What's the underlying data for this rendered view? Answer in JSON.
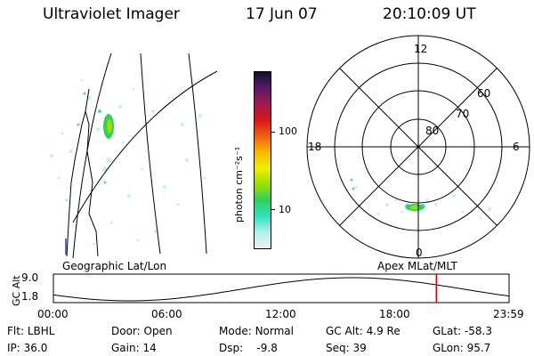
{
  "header": {
    "title": "Ultraviolet Imager",
    "date": "17 Jun 07",
    "time": "20:10:09 UT"
  },
  "geo_panel": {
    "label": "Geographic Lat/Lon"
  },
  "colorbar": {
    "unit_label": "photon cm⁻²s⁻¹",
    "ticks": [
      "100",
      "10"
    ],
    "colors": [
      "#101030",
      "#5a1a6a",
      "#a01a50",
      "#d81818",
      "#f06010",
      "#f8b800",
      "#f0f000",
      "#98e000",
      "#30d060",
      "#30e0c0",
      "#b0f0f0",
      "#f0f0f0"
    ]
  },
  "polar_panel": {
    "label": "Apex MLat/MLT",
    "mlt_labels": {
      "top": "12",
      "left": "18",
      "right": "6",
      "bottom": "0"
    },
    "lat_labels": [
      "60",
      "70",
      "80"
    ]
  },
  "orbit": {
    "ylabel": "GC Alt",
    "yticks": [
      "9.0",
      "1.8"
    ],
    "xticks": [
      "00:00",
      "06:00",
      "12:00",
      "18:00",
      "23:59"
    ],
    "current_time_hours": 20.17
  },
  "status": {
    "filter_label": "Flt:",
    "filter_value": "LBHL",
    "ip_label": "IP:",
    "ip_value": "36.0",
    "door_label": "Door:",
    "door_value": "Open",
    "gain_label": "Gain:",
    "gain_value": "14",
    "mode_label": "Mode:",
    "mode_value": "Normal",
    "dsp_label": "Dsp:",
    "dsp_value": "-9.8",
    "gcalt_label": "GC Alt:",
    "gcalt_value": "4.9 Re",
    "seq_label": "Seq:",
    "seq_value": "39",
    "glat_label": "GLat:",
    "glat_value": "-58.3",
    "glon_label": "GLon:",
    "glon_value": "95.7"
  }
}
